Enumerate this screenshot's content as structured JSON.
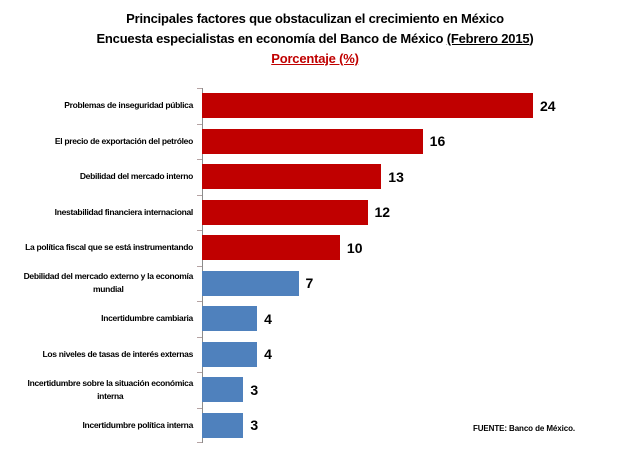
{
  "title": {
    "line1": "Principales factores que obstaculizan el crecimiento en México",
    "line2_plain": "Encuesta especialistas en economía del Banco de México ",
    "line2_underlined": "(Febrero 2015",
    "line2_close": ")",
    "line3": "Porcentaje (%)"
  },
  "source": "FUENTE: Banco de México.",
  "colors": {
    "bar_red": "#C00000",
    "bar_blue": "#4F81BD",
    "title_accent": "#C00000",
    "axis_line": "#8c8c8c"
  },
  "chart_data": {
    "type": "bar",
    "orientation": "horizontal",
    "title": "Principales factores que obstaculizan el crecimiento en México",
    "subtitle": "Encuesta especialistas en economía del Banco de México (Febrero 2015)",
    "value_axis_label": "Porcentaje (%)",
    "categories": [
      "Problemas de inseguridad pública",
      "El precio de exportación del petróleo",
      "Debilidad del mercado interno",
      "Inestabilidad financiera internacional",
      "La política fiscal que se está instrumentando",
      "Debilidad del mercado externo y la economía\nmundial",
      "Incertidumbre cambiaria",
      "Los niveles de tasas de interés externas",
      "Incertidumbre sobre la situación económica\ninterna",
      "Incertidumbre política interna"
    ],
    "values": [
      24,
      16,
      13,
      12,
      10,
      7,
      4,
      4,
      3,
      3
    ],
    "bar_colors": [
      "#C00000",
      "#C00000",
      "#C00000",
      "#C00000",
      "#C00000",
      "#4F81BD",
      "#4F81BD",
      "#4F81BD",
      "#4F81BD",
      "#4F81BD"
    ],
    "xlim": [
      0,
      24
    ],
    "data_labels": true,
    "grid": false,
    "legend": false,
    "source": "FUENTE: Banco de México."
  }
}
